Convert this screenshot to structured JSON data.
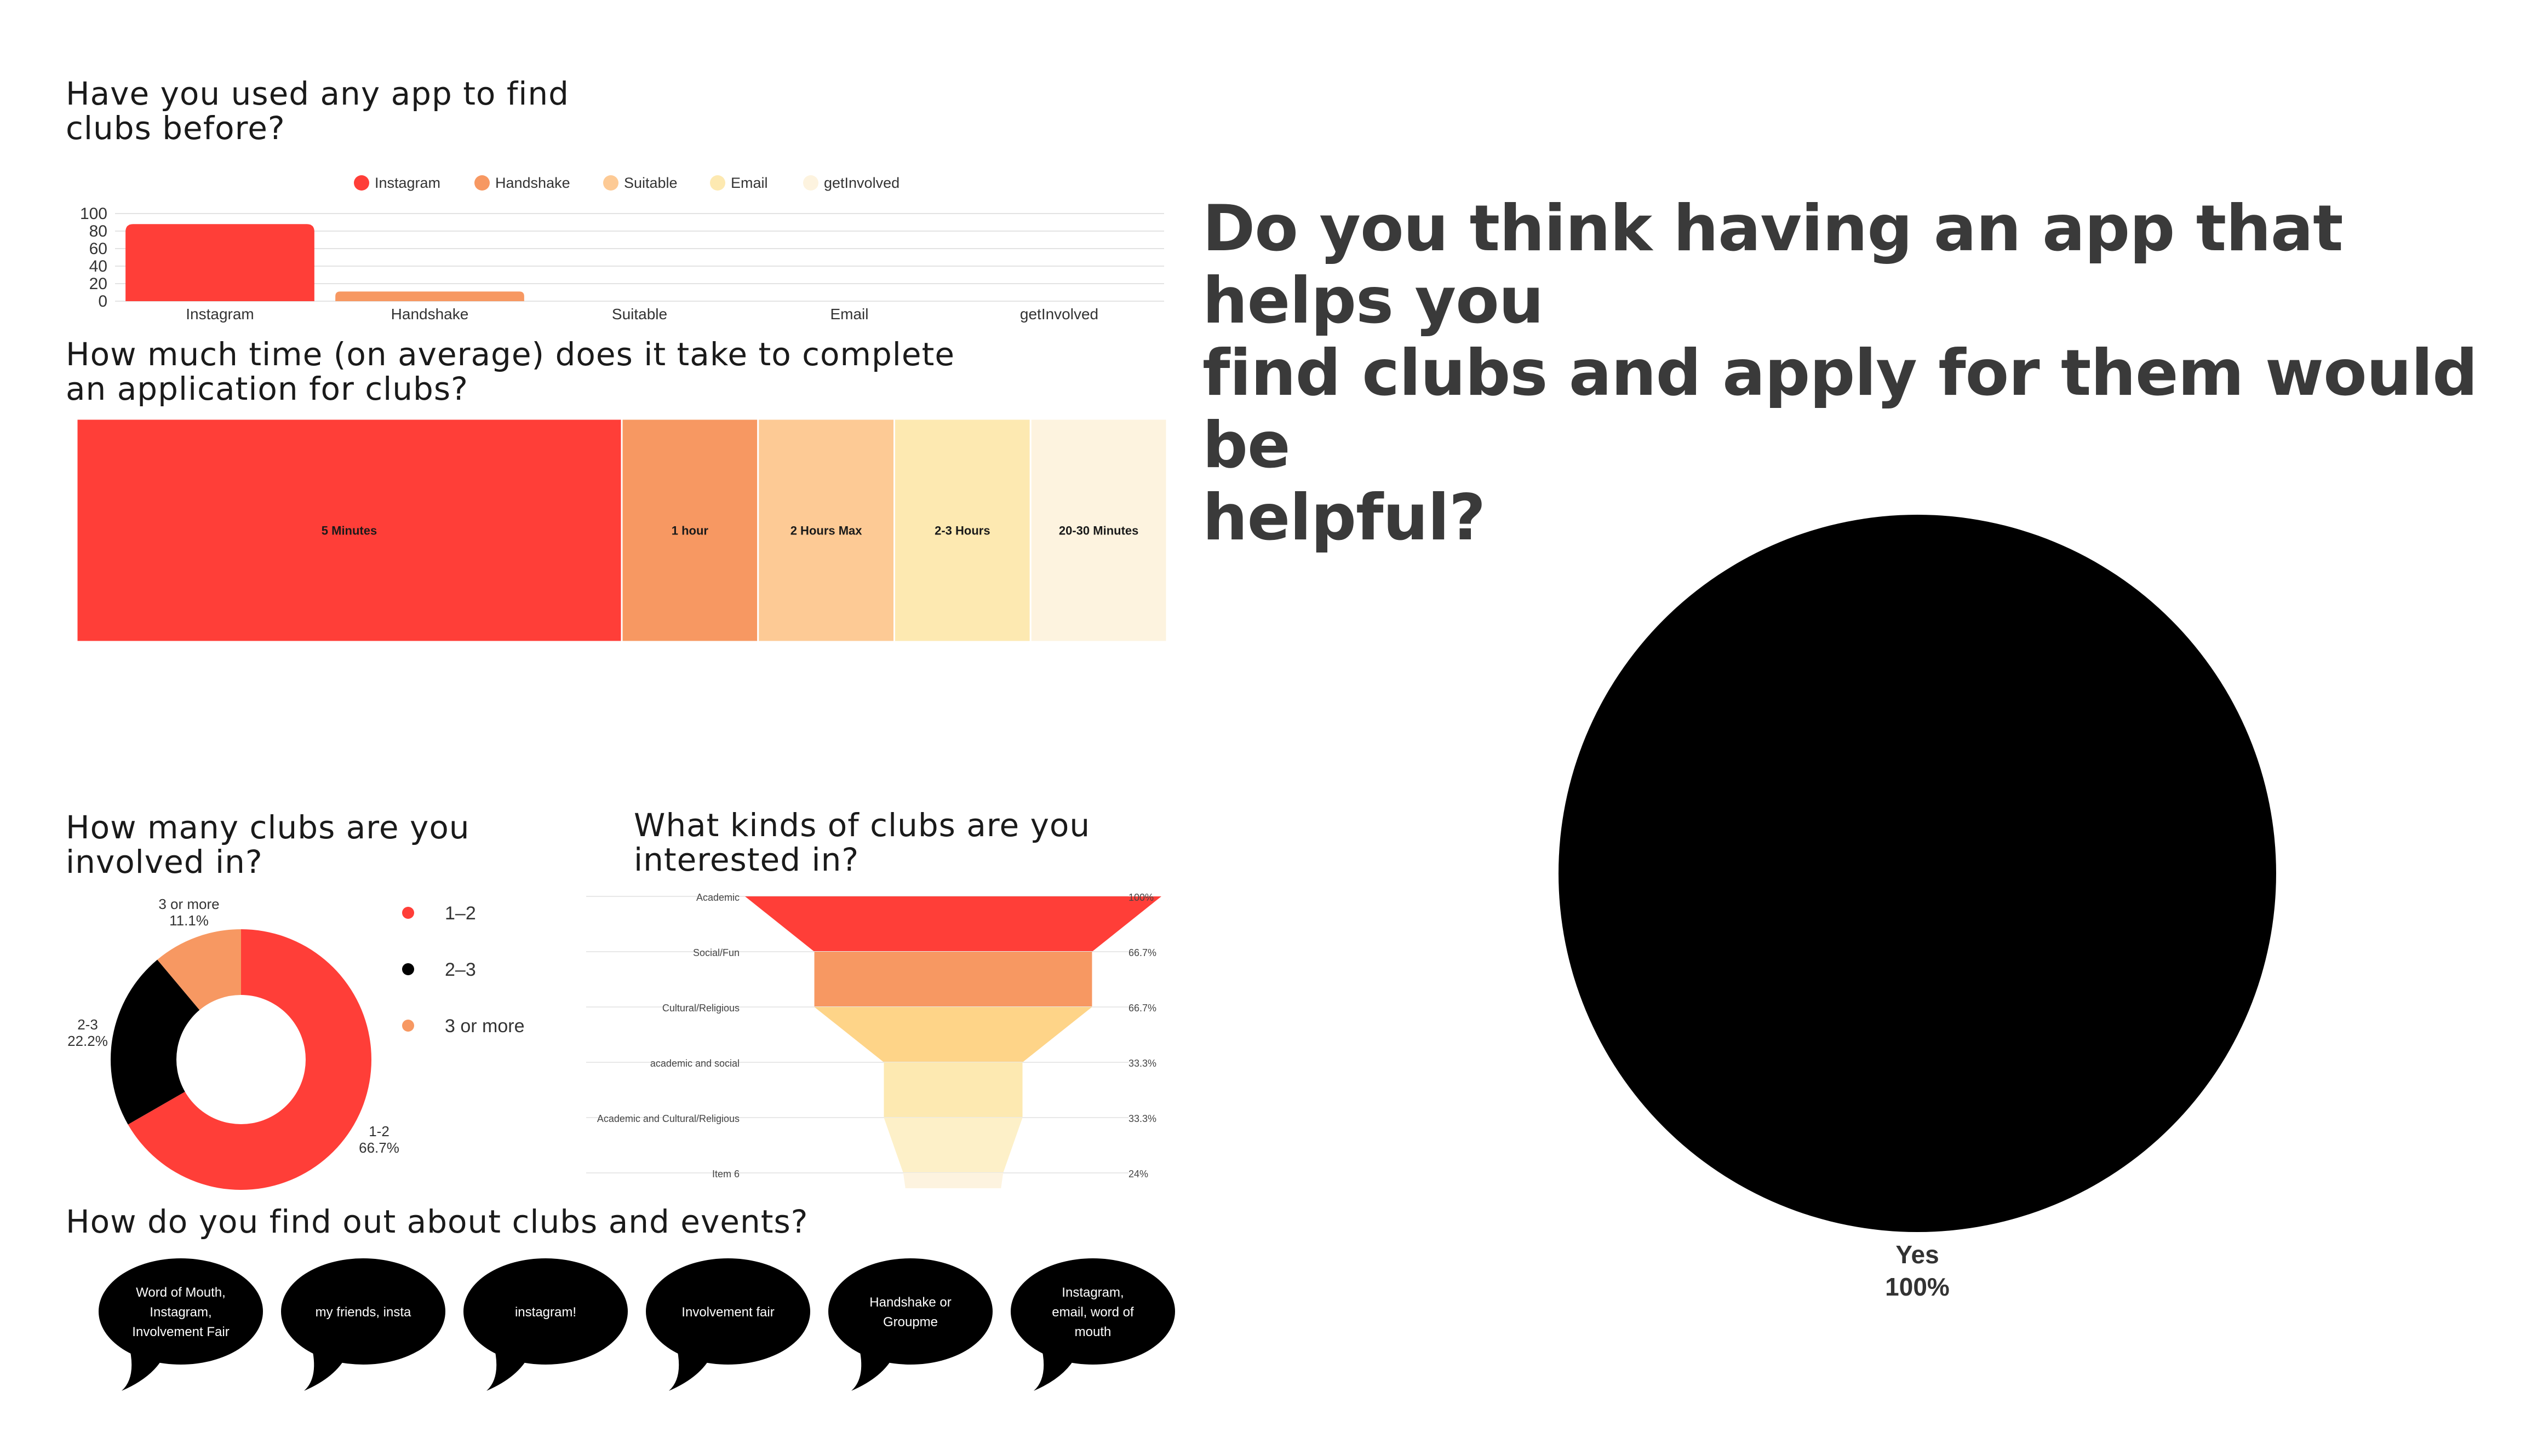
{
  "colors": {
    "red": "#ff3e38",
    "orange": "#f79862",
    "peach": "#fdca95",
    "yellow": "#fde9b1",
    "cream": "#fdf3df",
    "black": "#000000"
  },
  "section_titles": {
    "apps_line1": "Have you used any app to find",
    "apps_line2": "clubs before?",
    "time_line1": "How much time (on average) does it take to complete",
    "time_line2": "an application for clubs?",
    "clubs_count_line1": "How many clubs are you",
    "clubs_count_line2": "involved in?",
    "kinds_line1": "What kinds of clubs are you",
    "kinds_line2": "interested in?",
    "find_out": "How do you find out about clubs and events?",
    "helpful_line1": "Do you think having an app that helps you",
    "helpful_line2": "find clubs and apply for them would be",
    "helpful_line3": "helpful?"
  },
  "chart_data": [
    {
      "id": "apps_used",
      "type": "bar",
      "categories": [
        "Instagram",
        "Handshake",
        "Suitable",
        "Email",
        "getInvolved"
      ],
      "values": [
        88,
        11,
        0,
        0,
        0
      ],
      "ylim": [
        0,
        100
      ],
      "yticks": [
        "100",
        "80",
        "60",
        "40",
        "20",
        "0"
      ],
      "legend": [
        "Instagram",
        "Handshake",
        "Suitable",
        "Email",
        "getInvolved"
      ],
      "legend_position": "top",
      "grid": true
    },
    {
      "id": "application_time",
      "type": "heatmap",
      "categories": [
        "5 Minutes",
        "1 hour",
        "2 Hours Max",
        "2-3 Hours",
        "20-30 Minutes"
      ],
      "values": [
        50,
        12.5,
        12.5,
        12.5,
        12.5
      ]
    },
    {
      "id": "clubs_count",
      "type": "pie",
      "labels": [
        "1-2",
        "2-3",
        "3 or more"
      ],
      "values": [
        66.7,
        22.2,
        11.1
      ],
      "value_labels": [
        "66.7%",
        "22.2%",
        "11.1%"
      ],
      "legend": [
        "1–2",
        "2–3",
        "3 or more"
      ]
    },
    {
      "id": "club_kinds",
      "type": "bar",
      "categories": [
        "Academic",
        "Social/Fun",
        "Cultural/Religious",
        "academic and social",
        "Academic and Cultural/Religious",
        "Item 6"
      ],
      "values": [
        100,
        66.7,
        66.7,
        33.3,
        33.3,
        24
      ],
      "value_labels": [
        "100%",
        "66.7%",
        "66.7%",
        "33.3%",
        "33.3%",
        "24%"
      ]
    },
    {
      "id": "helpful",
      "type": "pie",
      "labels": [
        "Yes"
      ],
      "values": [
        100
      ],
      "value_labels": [
        "100%"
      ]
    }
  ],
  "find_out_answers": [
    [
      "Word of Mouth,",
      "Instagram,",
      "Involvement Fair"
    ],
    [
      "my friends, insta"
    ],
    [
      "instagram!"
    ],
    [
      "Involvement fair"
    ],
    [
      "Handshake or",
      "Groupme"
    ],
    [
      "Instagram,",
      "email, word of",
      "mouth"
    ]
  ]
}
